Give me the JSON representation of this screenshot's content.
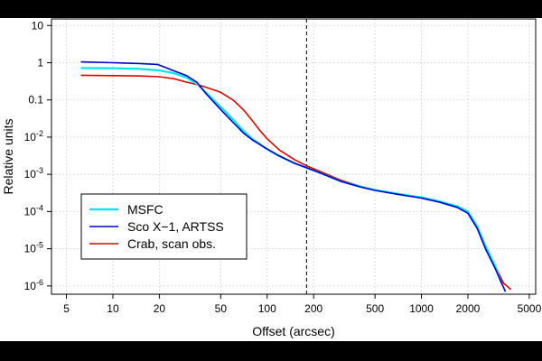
{
  "chart_data": {
    "type": "line",
    "title": "",
    "xlabel": "Offset (arcsec)",
    "ylabel": "Relative units",
    "xscale": "log",
    "yscale": "log",
    "xlim": [
      4,
      5500
    ],
    "ylim": [
      6e-07,
      15
    ],
    "grid": true,
    "legend_position": "bottom-left",
    "x_ticks": [
      {
        "value": 5,
        "label": "5"
      },
      {
        "value": 10,
        "label": "10"
      },
      {
        "value": 20,
        "label": "20"
      },
      {
        "value": 50,
        "label": "50"
      },
      {
        "value": 100,
        "label": "100"
      },
      {
        "value": 200,
        "label": "200"
      },
      {
        "value": 500,
        "label": "500"
      },
      {
        "value": 1000,
        "label": "1000"
      },
      {
        "value": 2000,
        "label": "2000"
      },
      {
        "value": 5000,
        "label": "5000"
      }
    ],
    "y_ticks": [
      {
        "value": 10,
        "base": "10",
        "exp": ""
      },
      {
        "value": 1,
        "base": "1",
        "exp": ""
      },
      {
        "value": 0.1,
        "base": "0.1",
        "exp": ""
      },
      {
        "value": 0.01,
        "base": "10",
        "exp": "-2"
      },
      {
        "value": 0.001,
        "base": "10",
        "exp": "-3"
      },
      {
        "value": 0.0001,
        "base": "10",
        "exp": "-4"
      },
      {
        "value": 1e-05,
        "base": "10",
        "exp": "-5"
      },
      {
        "value": 1e-06,
        "base": "10",
        "exp": "-6"
      }
    ],
    "reference_line_x": 180,
    "series": [
      {
        "name": "MSFC",
        "color": "#00e5ee",
        "width": 2.2,
        "points": [
          [
            6.2,
            0.72
          ],
          [
            10,
            0.71
          ],
          [
            15,
            0.68
          ],
          [
            20,
            0.62
          ],
          [
            25,
            0.52
          ],
          [
            30,
            0.4
          ],
          [
            35,
            0.27
          ],
          [
            40,
            0.16
          ],
          [
            50,
            0.065
          ],
          [
            60,
            0.03
          ],
          [
            70,
            0.015
          ],
          [
            80,
            0.009
          ],
          [
            100,
            0.0047
          ],
          [
            120,
            0.0031
          ],
          [
            150,
            0.002
          ],
          [
            180,
            0.0015
          ],
          [
            220,
            0.0011
          ],
          [
            300,
            0.00065
          ],
          [
            400,
            0.00047
          ],
          [
            500,
            0.00038
          ],
          [
            700,
            0.0003
          ],
          [
            1000,
            0.00024
          ],
          [
            1300,
            0.00019
          ],
          [
            1700,
            0.00014
          ],
          [
            2000,
            0.0001
          ],
          [
            2300,
            4e-05
          ],
          [
            2600,
            1.2e-05
          ],
          [
            3000,
            3.5e-06
          ],
          [
            3300,
            1.2e-06
          ]
        ]
      },
      {
        "name": "Sco X−1, ARTSS",
        "color": "#0000cc",
        "width": 1.6,
        "points": [
          [
            6.2,
            1.05
          ],
          [
            10,
            1.0
          ],
          [
            15,
            0.95
          ],
          [
            19.5,
            0.9
          ],
          [
            25,
            0.6
          ],
          [
            30,
            0.45
          ],
          [
            35,
            0.3
          ],
          [
            40,
            0.15
          ],
          [
            50,
            0.055
          ],
          [
            60,
            0.025
          ],
          [
            70,
            0.013
          ],
          [
            80,
            0.0085
          ],
          [
            100,
            0.0048
          ],
          [
            120,
            0.0031
          ],
          [
            150,
            0.002
          ],
          [
            180,
            0.0015
          ],
          [
            220,
            0.0011
          ],
          [
            300,
            0.00065
          ],
          [
            400,
            0.00046
          ],
          [
            500,
            0.00037
          ],
          [
            700,
            0.00029
          ],
          [
            1000,
            0.00023
          ],
          [
            1300,
            0.00018
          ],
          [
            1700,
            0.00013
          ],
          [
            2000,
            9e-05
          ],
          [
            2300,
            3.5e-05
          ],
          [
            2600,
            1e-05
          ],
          [
            3000,
            3e-06
          ],
          [
            3500,
            7e-07
          ]
        ]
      },
      {
        "name": "Crab, scan obs.",
        "color": "#e00000",
        "width": 1.6,
        "points": [
          [
            6.2,
            0.46
          ],
          [
            10,
            0.45
          ],
          [
            15,
            0.44
          ],
          [
            20,
            0.42
          ],
          [
            25,
            0.37
          ],
          [
            30,
            0.3
          ],
          [
            35,
            0.26
          ],
          [
            40,
            0.22
          ],
          [
            50,
            0.16
          ],
          [
            60,
            0.1
          ],
          [
            70,
            0.055
          ],
          [
            80,
            0.028
          ],
          [
            90,
            0.015
          ],
          [
            100,
            0.009
          ],
          [
            120,
            0.0045
          ],
          [
            150,
            0.0025
          ],
          [
            180,
            0.0017
          ],
          [
            220,
            0.0012
          ],
          [
            300,
            0.0007
          ],
          [
            400,
            0.00048
          ],
          [
            500,
            0.00038
          ],
          [
            700,
            0.0003
          ],
          [
            1000,
            0.00023
          ],
          [
            1300,
            0.00018
          ],
          [
            1700,
            0.00013
          ],
          [
            2000,
            0.0001
          ],
          [
            2300,
            4e-05
          ],
          [
            2600,
            1.2e-05
          ],
          [
            3000,
            3.5e-06
          ],
          [
            3400,
            1.2e-06
          ],
          [
            3800,
            8e-07
          ]
        ]
      }
    ]
  }
}
